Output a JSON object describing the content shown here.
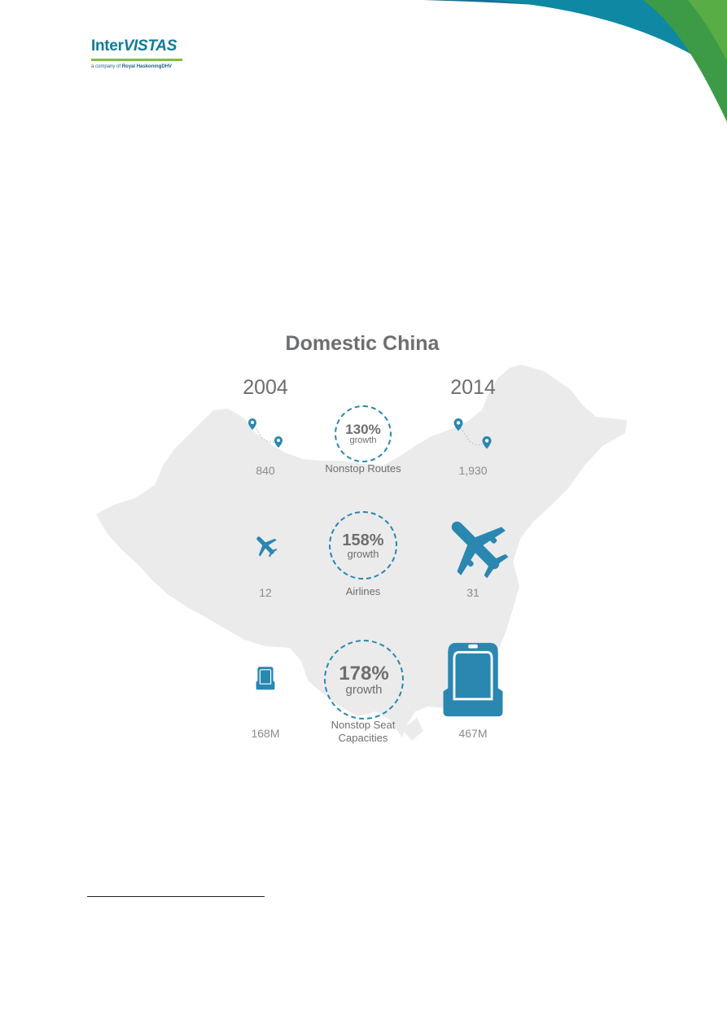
{
  "header": {
    "logo_text_a": "Inter",
    "logo_text_b": "VISTAS",
    "logo_sub_a": "a company of",
    "logo_sub_b": "Royal HaskoningDHV"
  },
  "colors": {
    "teal": "#0f7c98",
    "blue": "#2a87b0",
    "green": "#3f9e4a",
    "icon": "#2a87b0",
    "map": "#ebebec",
    "text": "#6d6e70"
  },
  "infographic": {
    "title": "Domestic China",
    "year_left": "2004",
    "year_right": "2014",
    "rows": [
      {
        "pct": "130%",
        "growth": "growth",
        "label": "Nonstop Routes",
        "left": "840",
        "right": "1,930"
      },
      {
        "pct": "158%",
        "growth": "growth",
        "label": "Airlines",
        "left": "12",
        "right": "31"
      },
      {
        "pct": "178%",
        "growth": "growth",
        "label_1": "Nonstop Seat",
        "label_2": "Capacities",
        "left": "168M",
        "right": "467M"
      }
    ]
  }
}
